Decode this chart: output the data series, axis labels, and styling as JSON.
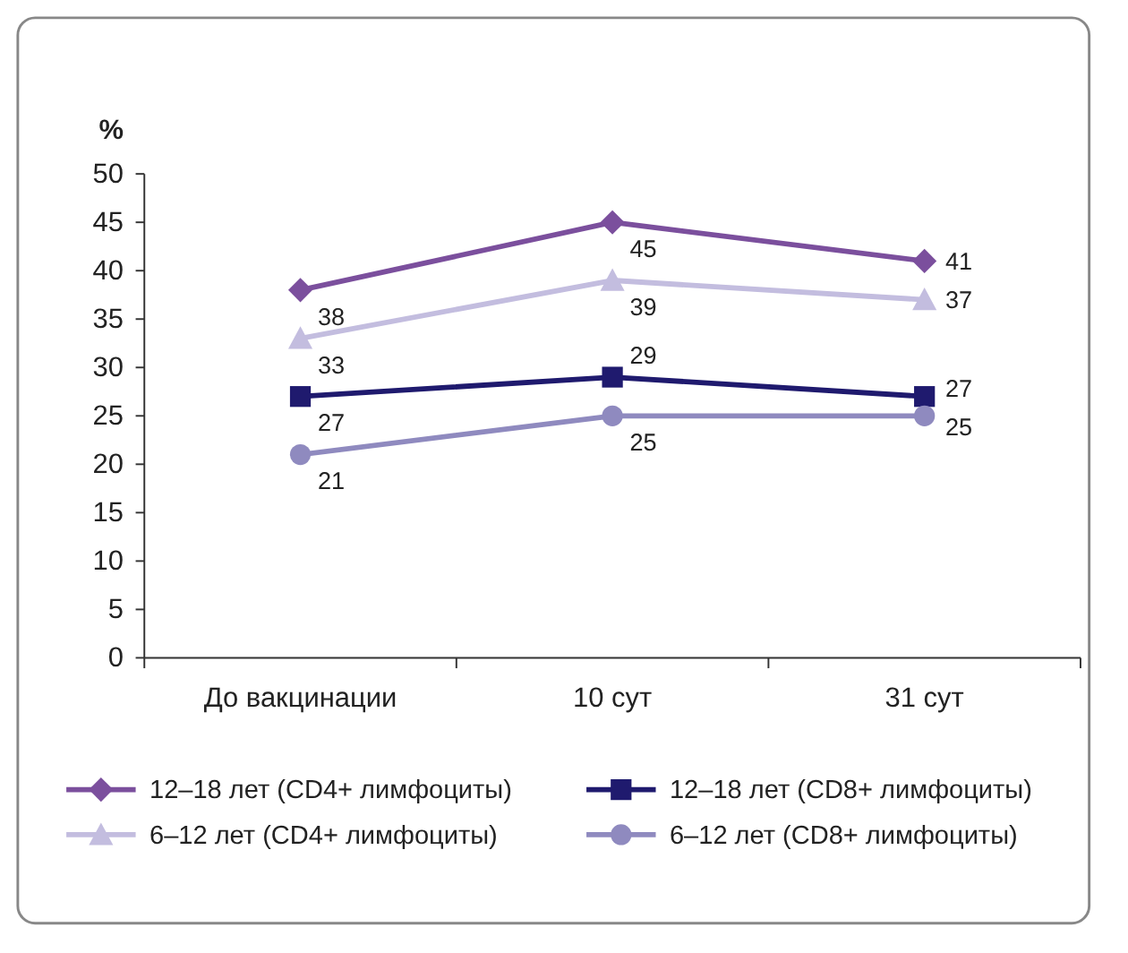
{
  "chart_data": {
    "type": "line",
    "ylabel": "%",
    "categories": [
      "До вакцинации",
      "10 сут",
      "31 сут"
    ],
    "series": [
      {
        "name": "12–18 лет (CD4+ лимфоциты)",
        "color": "#7b4f9d",
        "marker": "diamond",
        "values": [
          38,
          45,
          41
        ]
      },
      {
        "name": "12–18 лет (CD8+ лимфоциты)",
        "color": "#1f1a6e",
        "marker": "square",
        "values": [
          27,
          29,
          27
        ]
      },
      {
        "name": "6–12 лет (CD4+ лимфоциты)",
        "color": "#c3bddf",
        "marker": "triangle",
        "values": [
          33,
          39,
          37
        ]
      },
      {
        "name": "6–12 лет (CD8+ лимфоциты)",
        "color": "#8f8abf",
        "marker": "circle",
        "values": [
          21,
          25,
          25
        ]
      }
    ],
    "ylim": [
      0,
      50
    ],
    "yticks": [
      0,
      5,
      10,
      15,
      20,
      25,
      30,
      35,
      40,
      45,
      50
    ],
    "grid": false,
    "legend": "bottom",
    "data_labels": true,
    "line_style": "solid"
  }
}
